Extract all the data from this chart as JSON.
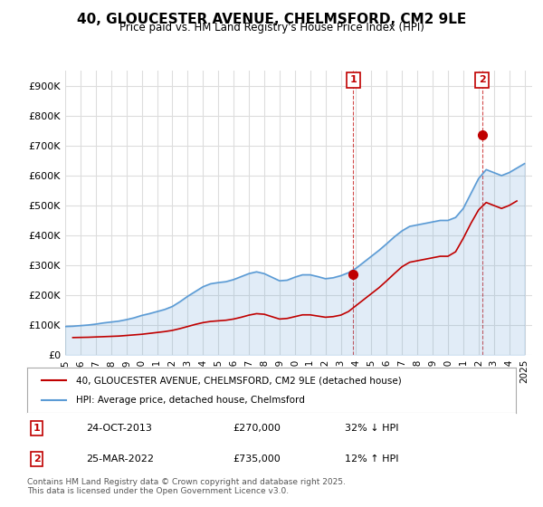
{
  "title": "40, GLOUCESTER AVENUE, CHELMSFORD, CM2 9LE",
  "subtitle": "Price paid vs. HM Land Registry's House Price Index (HPI)",
  "ylabel": "",
  "ylim": [
    0,
    950000
  ],
  "yticks": [
    0,
    100000,
    200000,
    300000,
    400000,
    500000,
    600000,
    700000,
    800000,
    900000
  ],
  "ytick_labels": [
    "£0",
    "£100K",
    "£200K",
    "£300K",
    "£400K",
    "£500K",
    "£600K",
    "£700K",
    "£800K",
    "£900K"
  ],
  "hpi_color": "#5B9BD5",
  "sold_color": "#C00000",
  "marker_color": "#C00000",
  "annotation_box_color": "#C00000",
  "background_color": "#FFFFFF",
  "grid_color": "#DDDDDD",
  "legend_label_sold": "40, GLOUCESTER AVENUE, CHELMSFORD, CM2 9LE (detached house)",
  "legend_label_hpi": "HPI: Average price, detached house, Chelmsford",
  "annotation1_num": "1",
  "annotation1_date": "24-OCT-2013",
  "annotation1_price": "£270,000",
  "annotation1_hpi": "32% ↓ HPI",
  "annotation2_num": "2",
  "annotation2_date": "25-MAR-2022",
  "annotation2_price": "£735,000",
  "annotation2_hpi": "12% ↑ HPI",
  "footnote": "Contains HM Land Registry data © Crown copyright and database right 2025.\nThis data is licensed under the Open Government Licence v3.0.",
  "hpi_data": {
    "years": [
      1995,
      1995.5,
      1996,
      1996.5,
      1997,
      1997.5,
      1998,
      1998.5,
      1999,
      1999.5,
      2000,
      2000.5,
      2001,
      2001.5,
      2002,
      2002.5,
      2003,
      2003.5,
      2004,
      2004.5,
      2005,
      2005.5,
      2006,
      2006.5,
      2007,
      2007.5,
      2008,
      2008.5,
      2009,
      2009.5,
      2010,
      2010.5,
      2011,
      2011.5,
      2012,
      2012.5,
      2013,
      2013.5,
      2014,
      2014.5,
      2015,
      2015.5,
      2016,
      2016.5,
      2017,
      2017.5,
      2018,
      2018.5,
      2019,
      2019.5,
      2020,
      2020.5,
      2021,
      2021.5,
      2022,
      2022.5,
      2023,
      2023.5,
      2024,
      2024.5,
      2025
    ],
    "values": [
      95000,
      96000,
      98000,
      100000,
      103000,
      107000,
      110000,
      113000,
      118000,
      124000,
      132000,
      138000,
      145000,
      152000,
      162000,
      178000,
      196000,
      212000,
      228000,
      238000,
      242000,
      245000,
      252000,
      262000,
      272000,
      278000,
      272000,
      260000,
      248000,
      250000,
      260000,
      268000,
      268000,
      262000,
      255000,
      258000,
      265000,
      275000,
      290000,
      310000,
      330000,
      350000,
      372000,
      395000,
      415000,
      430000,
      435000,
      440000,
      445000,
      450000,
      450000,
      460000,
      490000,
      540000,
      590000,
      620000,
      610000,
      600000,
      610000,
      625000,
      640000
    ]
  },
  "sold_data": {
    "years": [
      1995.5,
      1996,
      1996.5,
      1997,
      1997.5,
      1998,
      1998.5,
      1999,
      1999.5,
      2000,
      2000.5,
      2001,
      2001.5,
      2002,
      2002.5,
      2003,
      2003.5,
      2004,
      2004.5,
      2005,
      2005.5,
      2006,
      2006.5,
      2007,
      2007.5,
      2008,
      2008.5,
      2009,
      2009.5,
      2010,
      2010.5,
      2011,
      2011.5,
      2012,
      2012.5,
      2013,
      2013.5,
      2014,
      2014.5,
      2015,
      2015.5,
      2016,
      2016.5,
      2017,
      2017.5,
      2018,
      2018.5,
      2019,
      2019.5,
      2020,
      2020.5,
      2021,
      2021.5,
      2022,
      2022.5,
      2023,
      2023.5,
      2024,
      2024.5
    ],
    "values": [
      58000,
      58500,
      59000,
      60000,
      61000,
      62000,
      63000,
      65000,
      67000,
      69000,
      72000,
      75000,
      78000,
      82000,
      88000,
      95000,
      102000,
      108000,
      112000,
      114000,
      116000,
      120000,
      126000,
      133000,
      138000,
      136000,
      128000,
      120000,
      122000,
      128000,
      134000,
      134000,
      130000,
      126000,
      128000,
      133000,
      145000,
      165000,
      185000,
      205000,
      225000,
      248000,
      272000,
      295000,
      310000,
      315000,
      320000,
      325000,
      330000,
      330000,
      345000,
      390000,
      440000,
      485000,
      510000,
      500000,
      490000,
      500000,
      515000
    ]
  },
  "sale1_x": 2013.82,
  "sale1_y": 270000,
  "sale2_x": 2022.23,
  "sale2_y": 735000,
  "xmin": 1995,
  "xmax": 2025.5,
  "xticks": [
    1995,
    1996,
    1997,
    1998,
    1999,
    2000,
    2001,
    2002,
    2003,
    2004,
    2005,
    2006,
    2007,
    2008,
    2009,
    2010,
    2011,
    2012,
    2013,
    2014,
    2015,
    2016,
    2017,
    2018,
    2019,
    2020,
    2021,
    2022,
    2023,
    2024,
    2025
  ]
}
